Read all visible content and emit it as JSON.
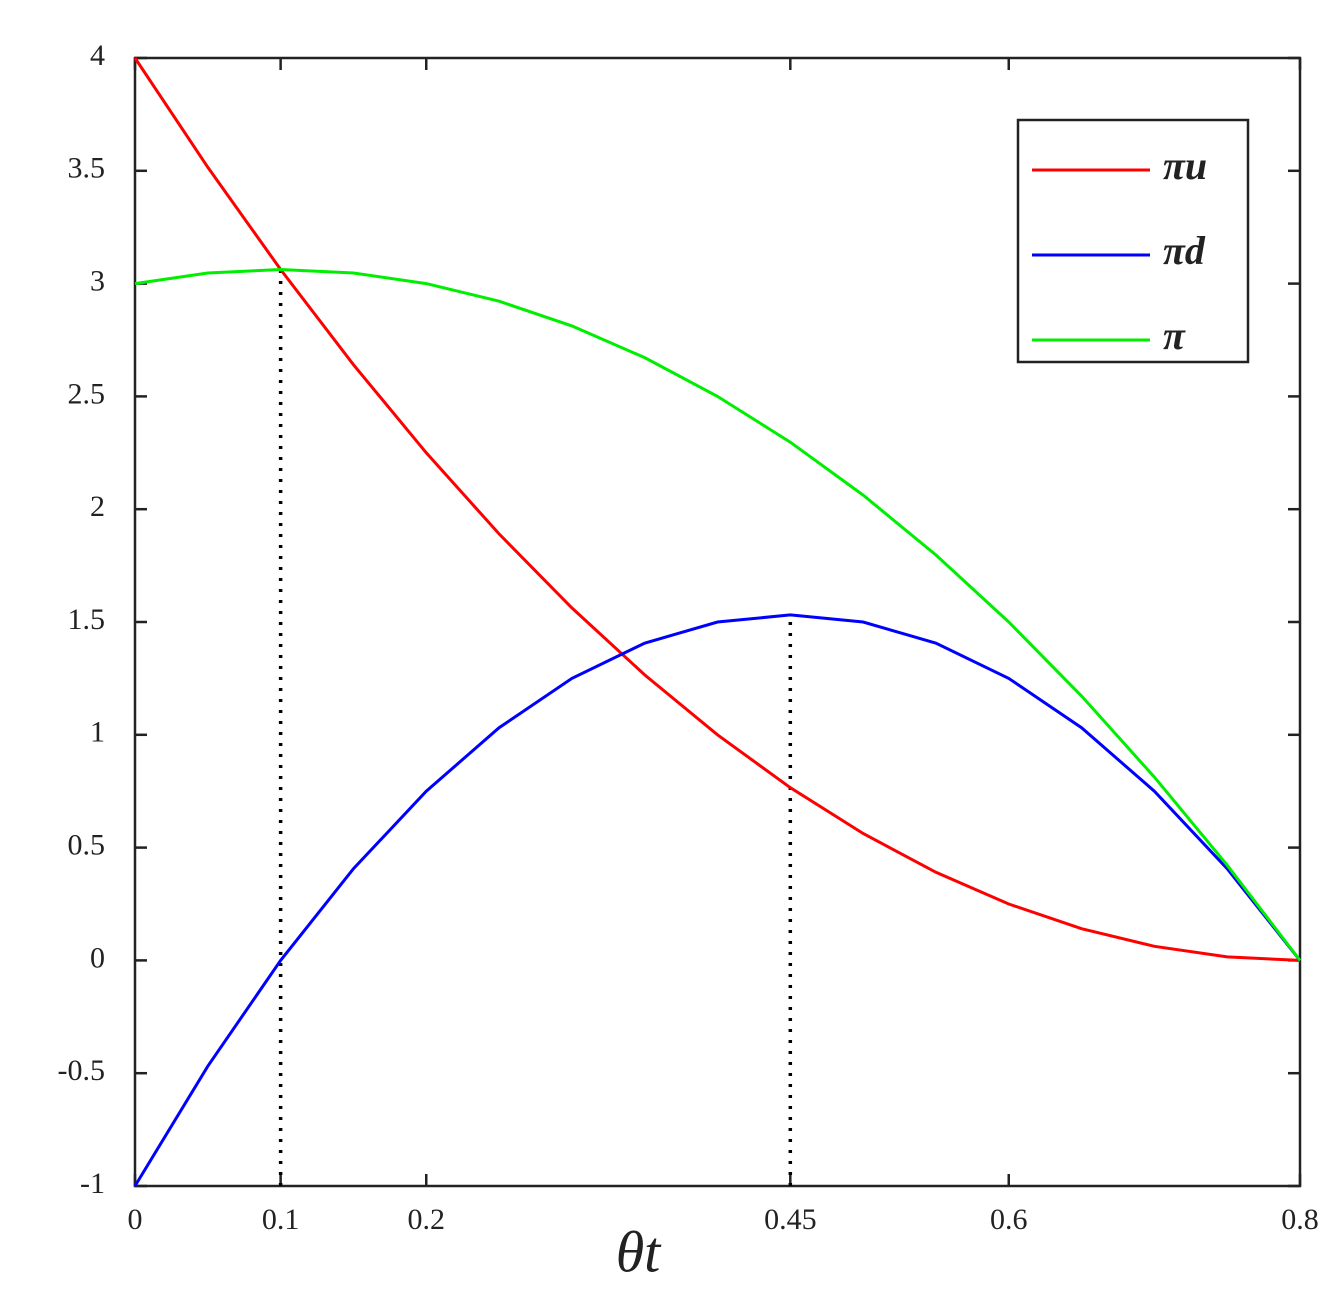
{
  "chart_data": {
    "type": "line",
    "x_label": "θt",
    "x": [
      0,
      0.05,
      0.1,
      0.15,
      0.2,
      0.25,
      0.3,
      0.35,
      0.4,
      0.45,
      0.5,
      0.55,
      0.6,
      0.65,
      0.7,
      0.75,
      0.8
    ],
    "series": [
      {
        "name": "πu",
        "color": "#ff0000",
        "values": [
          4,
          3.5156,
          3.0625,
          2.6406,
          2.25,
          1.8906,
          1.5625,
          1.2656,
          1,
          0.7656,
          0.5625,
          0.3906,
          0.25,
          0.1406,
          0.0625,
          0.0156,
          0
        ]
      },
      {
        "name": "πd",
        "color": "#0000ff",
        "values": [
          -1,
          -0.4688,
          0,
          0.4063,
          0.75,
          1.0313,
          1.25,
          1.4063,
          1.5,
          1.5313,
          1.5,
          1.4063,
          1.25,
          1.0313,
          0.75,
          0.4063,
          0
        ]
      },
      {
        "name": "π",
        "color": "#00ee00",
        "values": [
          3,
          3.0469,
          3.0625,
          3.0469,
          3,
          2.9219,
          2.8125,
          2.6719,
          2.5,
          2.2969,
          2.0625,
          1.7969,
          1.5,
          1.1719,
          0.8125,
          0.4219,
          0
        ]
      }
    ],
    "reference_lines": [
      {
        "x": 0.1,
        "y": 3.0625
      },
      {
        "x": 0.45,
        "y": 1.5313
      }
    ],
    "xlim": [
      0,
      0.8
    ],
    "xticks": [
      0,
      0.1,
      0.2,
      0.45,
      0.6,
      0.8
    ],
    "ylim": [
      -1,
      4
    ],
    "yticks": [
      -1,
      -0.5,
      0,
      0.5,
      1,
      1.5,
      2,
      2.5,
      3,
      3.5,
      4
    ],
    "legend": "upper-right",
    "grid": false
  }
}
